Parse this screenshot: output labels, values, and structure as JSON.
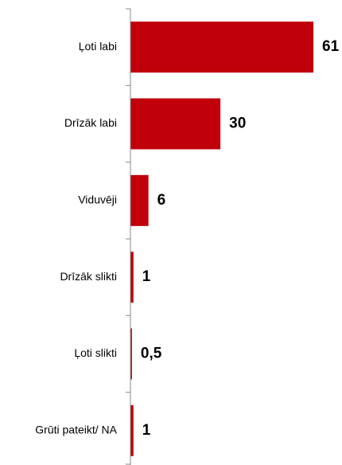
{
  "chart_data": {
    "type": "bar",
    "orientation": "horizontal",
    "categories": [
      "Ļoti labi",
      "Drīzāk labi",
      "Viduvēji",
      "Drīzāk slikti",
      "Ļoti slikti",
      "Grūti pateikt/ NA"
    ],
    "values": [
      61,
      30,
      6,
      1,
      0.5,
      1
    ],
    "value_labels": [
      "61",
      "30",
      "6",
      "1",
      "0,5",
      "1"
    ],
    "color": "#c0000b",
    "xlim": [
      0,
      70
    ]
  }
}
